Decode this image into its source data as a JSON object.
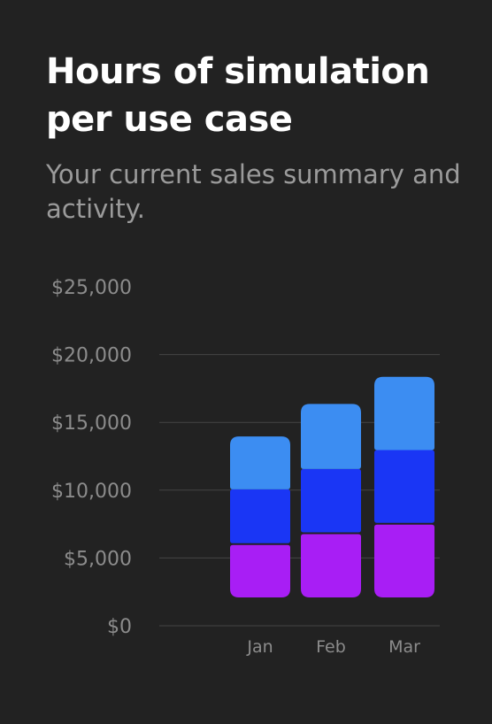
{
  "header": {
    "title": "Hours of simulation per use case",
    "subtitle": "Your current sales summary and activity."
  },
  "colors": {
    "background": "#222222",
    "grid": "#444444",
    "series": [
      "#a81ef5",
      "#1a36f5",
      "#3c8df2"
    ]
  },
  "chart_data": {
    "type": "bar",
    "stacked": true,
    "categories": [
      "Jan",
      "Feb",
      "Mar"
    ],
    "series": [
      {
        "values": [
          4000,
          4800,
          5500
        ]
      },
      {
        "values": [
          4100,
          4800,
          5500
        ]
      },
      {
        "values": [
          3900,
          4800,
          5400
        ]
      }
    ],
    "y_ticks": [
      "$0",
      "$5,000",
      "$10,000",
      "$15,000",
      "$20,000",
      "$25,000"
    ],
    "y_tick_values": [
      0,
      5000,
      10000,
      15000,
      20000,
      25000
    ],
    "ylim": [
      0,
      25000
    ],
    "grid": true,
    "legend": "none"
  }
}
